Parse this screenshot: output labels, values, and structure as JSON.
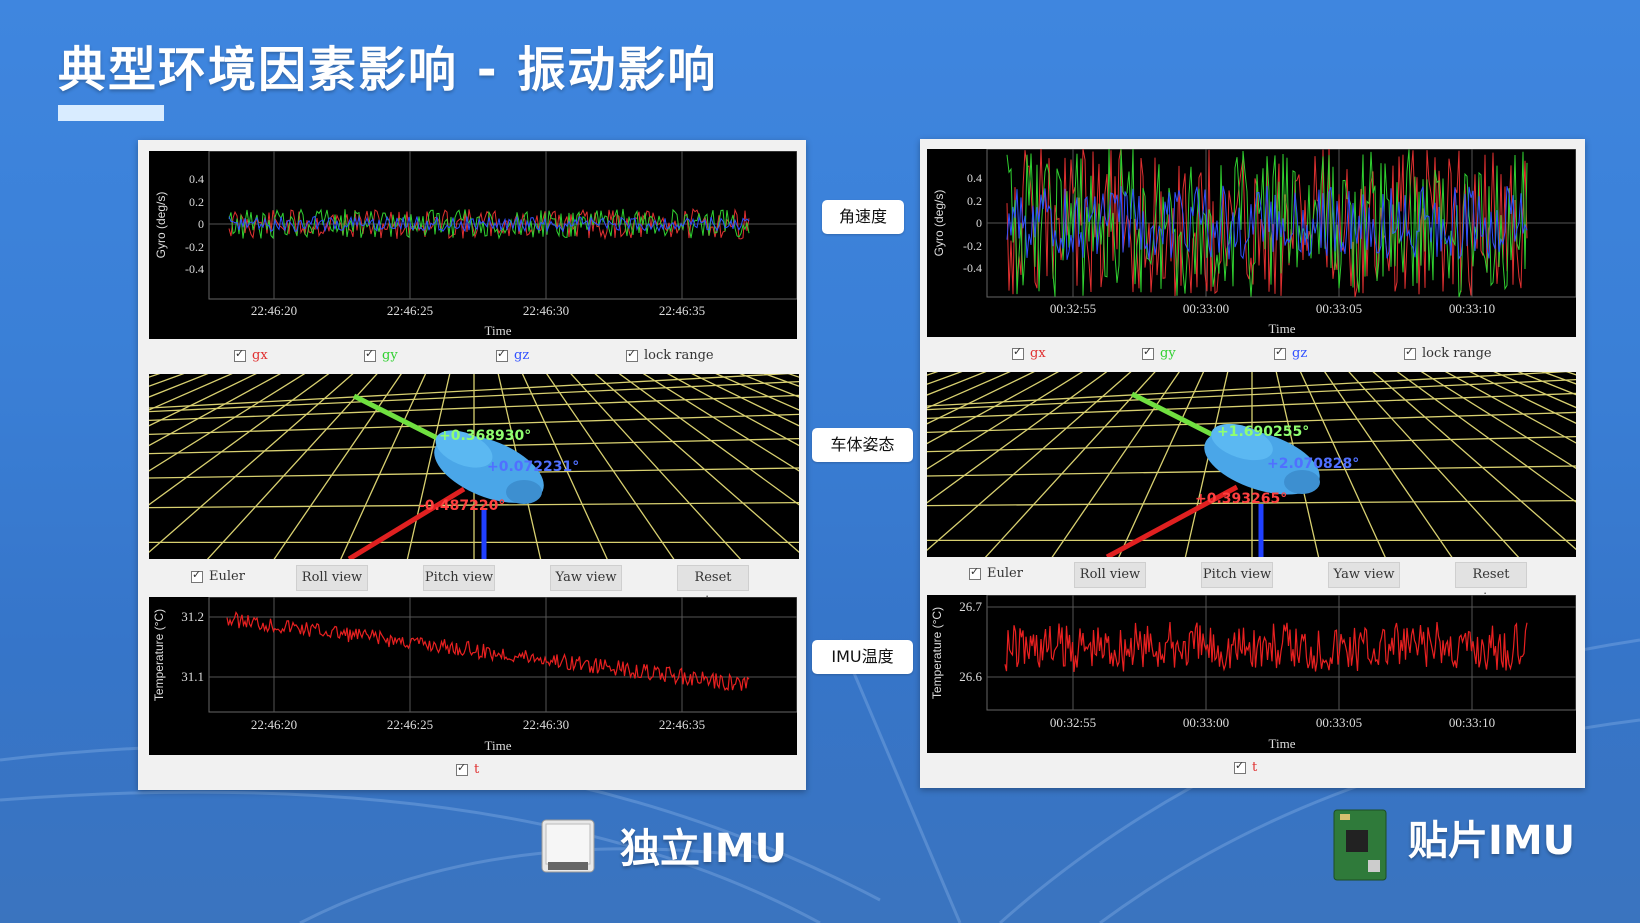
{
  "slide": {
    "title": "典型环境因素影响 - 振动影响",
    "row_labels": {
      "gyro": "角速度",
      "attitude": "车体姿态",
      "temperature": "IMU温度"
    },
    "captions": {
      "left": "独立IMU",
      "right": "贴片IMU"
    }
  },
  "colors": {
    "gx": "#e03030",
    "gy": "#30d030",
    "gz": "#3050ff",
    "temp_line": "#e82020",
    "grid_floor": "#d8d070"
  },
  "left": {
    "gyro": {
      "ylabel": "Gyro (deg/s)",
      "yticks": [
        "0.4",
        "0.2",
        "0",
        "-0.2",
        "-0.4"
      ],
      "xticks": [
        "22:46:20",
        "22:46:25",
        "22:46:30",
        "22:46:35"
      ],
      "xlabel": "Time"
    },
    "checkboxes": {
      "gx": "gx",
      "gy": "gy",
      "gz": "gz",
      "lock": "lock range"
    },
    "attitude": {
      "green_value": "+0.368930°",
      "blue_value": "+0.072231°",
      "red_value": "-0.487220°"
    },
    "buttons": {
      "euler": "Euler",
      "roll": "Roll view",
      "pitch": "Pitch view",
      "yaw": "Yaw view",
      "reset": "Reset view"
    },
    "temperature": {
      "ylabel": "Temperature (°C)",
      "yticks": [
        "31.2",
        "31.1"
      ],
      "xticks": [
        "22:46:20",
        "22:46:25",
        "22:46:30",
        "22:46:35"
      ],
      "xlabel": "Time"
    },
    "temp_checkbox": "t"
  },
  "right": {
    "gyro": {
      "ylabel": "Gyro (deg/s)",
      "yticks": [
        "0.4",
        "0.2",
        "0",
        "-0.2",
        "-0.4"
      ],
      "xticks": [
        "00:32:55",
        "00:33:00",
        "00:33:05",
        "00:33:10"
      ],
      "xlabel": "Time"
    },
    "checkboxes": {
      "gx": "gx",
      "gy": "gy",
      "gz": "gz",
      "lock": "lock range"
    },
    "attitude": {
      "green_value": "+1.690255°",
      "blue_value": "+2.070828°",
      "red_value": "+0.393265°"
    },
    "buttons": {
      "euler": "Euler",
      "roll": "Roll view",
      "pitch": "Pitch view",
      "yaw": "Yaw view",
      "reset": "Reset view"
    },
    "temperature": {
      "ylabel": "Temperature (°C)",
      "yticks": [
        "26.7",
        "26.6"
      ],
      "xticks": [
        "00:32:55",
        "00:33:00",
        "00:33:05",
        "00:33:10"
      ],
      "xlabel": "Time"
    },
    "temp_checkbox": "t"
  }
}
